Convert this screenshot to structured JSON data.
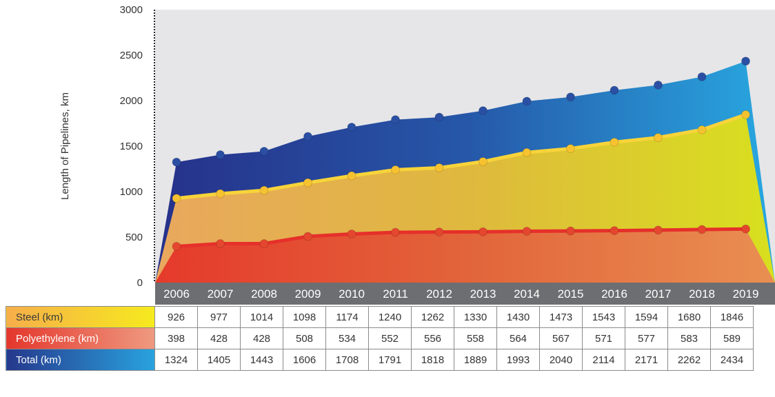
{
  "chart_data": {
    "type": "area",
    "ylabel": "Length of Pipelines, km",
    "ylim": [
      0,
      3000
    ],
    "yticks": [
      0,
      500,
      1000,
      1500,
      2000,
      2500,
      3000
    ],
    "categories": [
      "2006",
      "2007",
      "2008",
      "2009",
      "2010",
      "2011",
      "2012",
      "2013",
      "2014",
      "2015",
      "2016",
      "2017",
      "2018",
      "2019"
    ],
    "series": [
      {
        "name": "Steel (km)",
        "color": "#f5c02e",
        "values": [
          926,
          977,
          1014,
          1098,
          1174,
          1240,
          1262,
          1330,
          1430,
          1473,
          1543,
          1594,
          1680,
          1846
        ]
      },
      {
        "name": "Polyethylene (km)",
        "color": "#e4362c",
        "values": [
          398,
          428,
          428,
          508,
          534,
          552,
          556,
          558,
          564,
          567,
          571,
          577,
          583,
          589
        ]
      },
      {
        "name": "Total (km)",
        "color": "#2a64b0",
        "values": [
          1324,
          1405,
          1443,
          1606,
          1708,
          1791,
          1818,
          1889,
          1993,
          2040,
          2114,
          2171,
          2262,
          2434
        ]
      }
    ],
    "grid": false,
    "legend": "table-below"
  }
}
